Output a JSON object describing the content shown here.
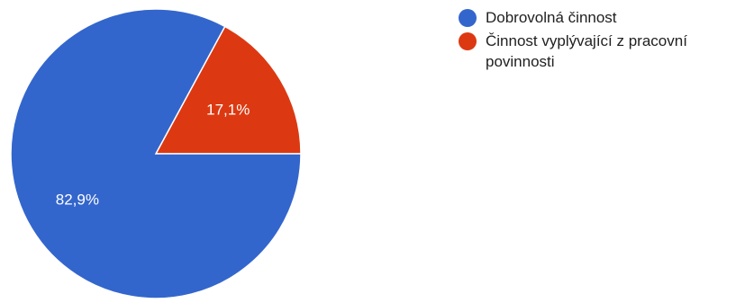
{
  "chart_data": {
    "type": "pie",
    "categories": [
      "Dobrovolná činnost",
      "Činnost vyplývající z pracovní povinnosti"
    ],
    "values": [
      82.9,
      17.1
    ],
    "labels": [
      "82,9%",
      "17,1%"
    ],
    "colors": [
      "#3366CC",
      "#DC3912"
    ],
    "legend_position": "right"
  }
}
